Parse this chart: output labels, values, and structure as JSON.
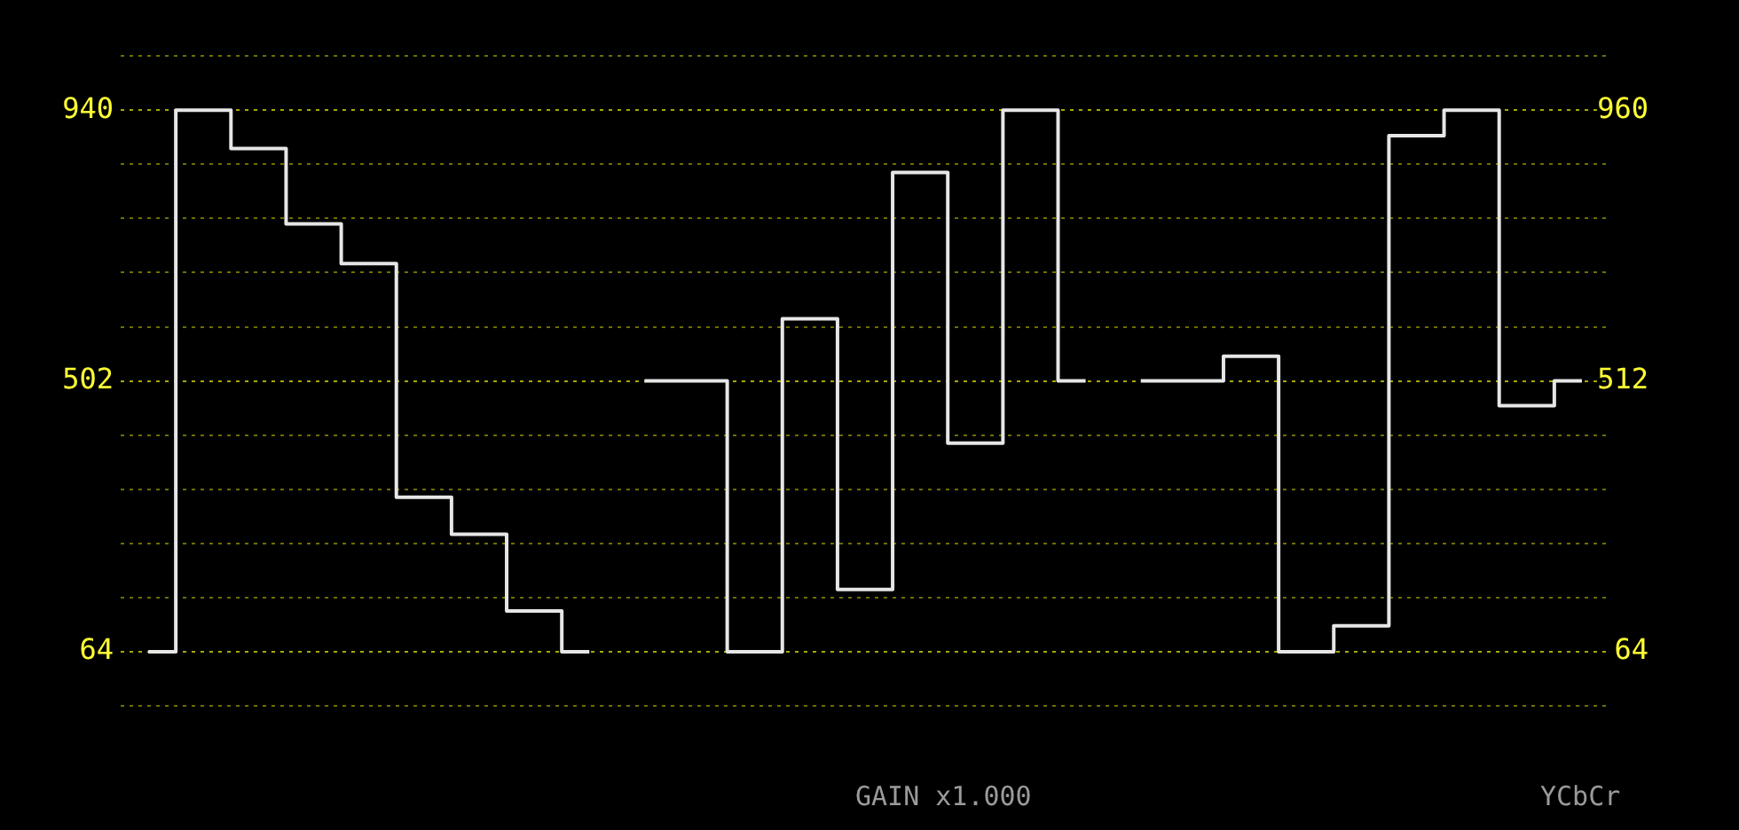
{
  "chart_data": {
    "type": "step",
    "categories": [
      null,
      null,
      null,
      null,
      null,
      null,
      null,
      null,
      null,
      null,
      null,
      null,
      null,
      null,
      null,
      null,
      null,
      null,
      null,
      null,
      null,
      null,
      null,
      null,
      null,
      null,
      null
    ],
    "series": [
      {
        "color": "#e6e6e6",
        "values": [
          64,
          940,
          878,
          756,
          692,
          314,
          254,
          130,
          64,
          null,
          null,
          null,
          null,
          null,
          null,
          null,
          null,
          null,
          null,
          null,
          null,
          null,
          null,
          null,
          null,
          null,
          null
        ]
      },
      {
        "color": "#e6e6e6",
        "axis": "y2",
        "values": [
          null,
          null,
          null,
          null,
          null,
          null,
          null,
          null,
          null,
          512,
          512,
          64,
          615,
          167,
          857,
          409,
          960,
          512,
          null,
          null,
          null,
          null,
          null,
          null,
          null,
          null,
          null
        ]
      },
      {
        "color": "#e6e6e6",
        "axis": "y2",
        "values": [
          null,
          null,
          null,
          null,
          null,
          null,
          null,
          null,
          null,
          null,
          null,
          null,
          null,
          null,
          null,
          null,
          null,
          null,
          512,
          512,
          553,
          64,
          107,
          918,
          960,
          471,
          512
        ]
      }
    ],
    "ylim": [
      -23.6,
      1027.6
    ],
    "yticks": [
      {
        "value": -23.6,
        "label": null
      },
      64,
      {
        "value": 151.6,
        "label": null
      },
      {
        "value": 239.2,
        "label": null
      },
      {
        "value": 326.8,
        "label": null
      },
      {
        "value": 414.4,
        "label": null
      },
      502,
      {
        "value": 589.6,
        "label": null
      },
      {
        "value": 677.2,
        "label": null
      },
      {
        "value": 764.8,
        "label": null
      },
      {
        "value": 852.4,
        "label": null
      },
      940,
      {
        "value": 1027.6,
        "label": null
      }
    ],
    "y2lim": [
      -25.6,
      1049.6
    ],
    "y2ticks": [
      64,
      512,
      960
    ],
    "grid": "y",
    "marker": "none",
    "line_style": "solid",
    "annotations": [
      "GAIN x1.000",
      "YCbCr"
    ]
  }
}
